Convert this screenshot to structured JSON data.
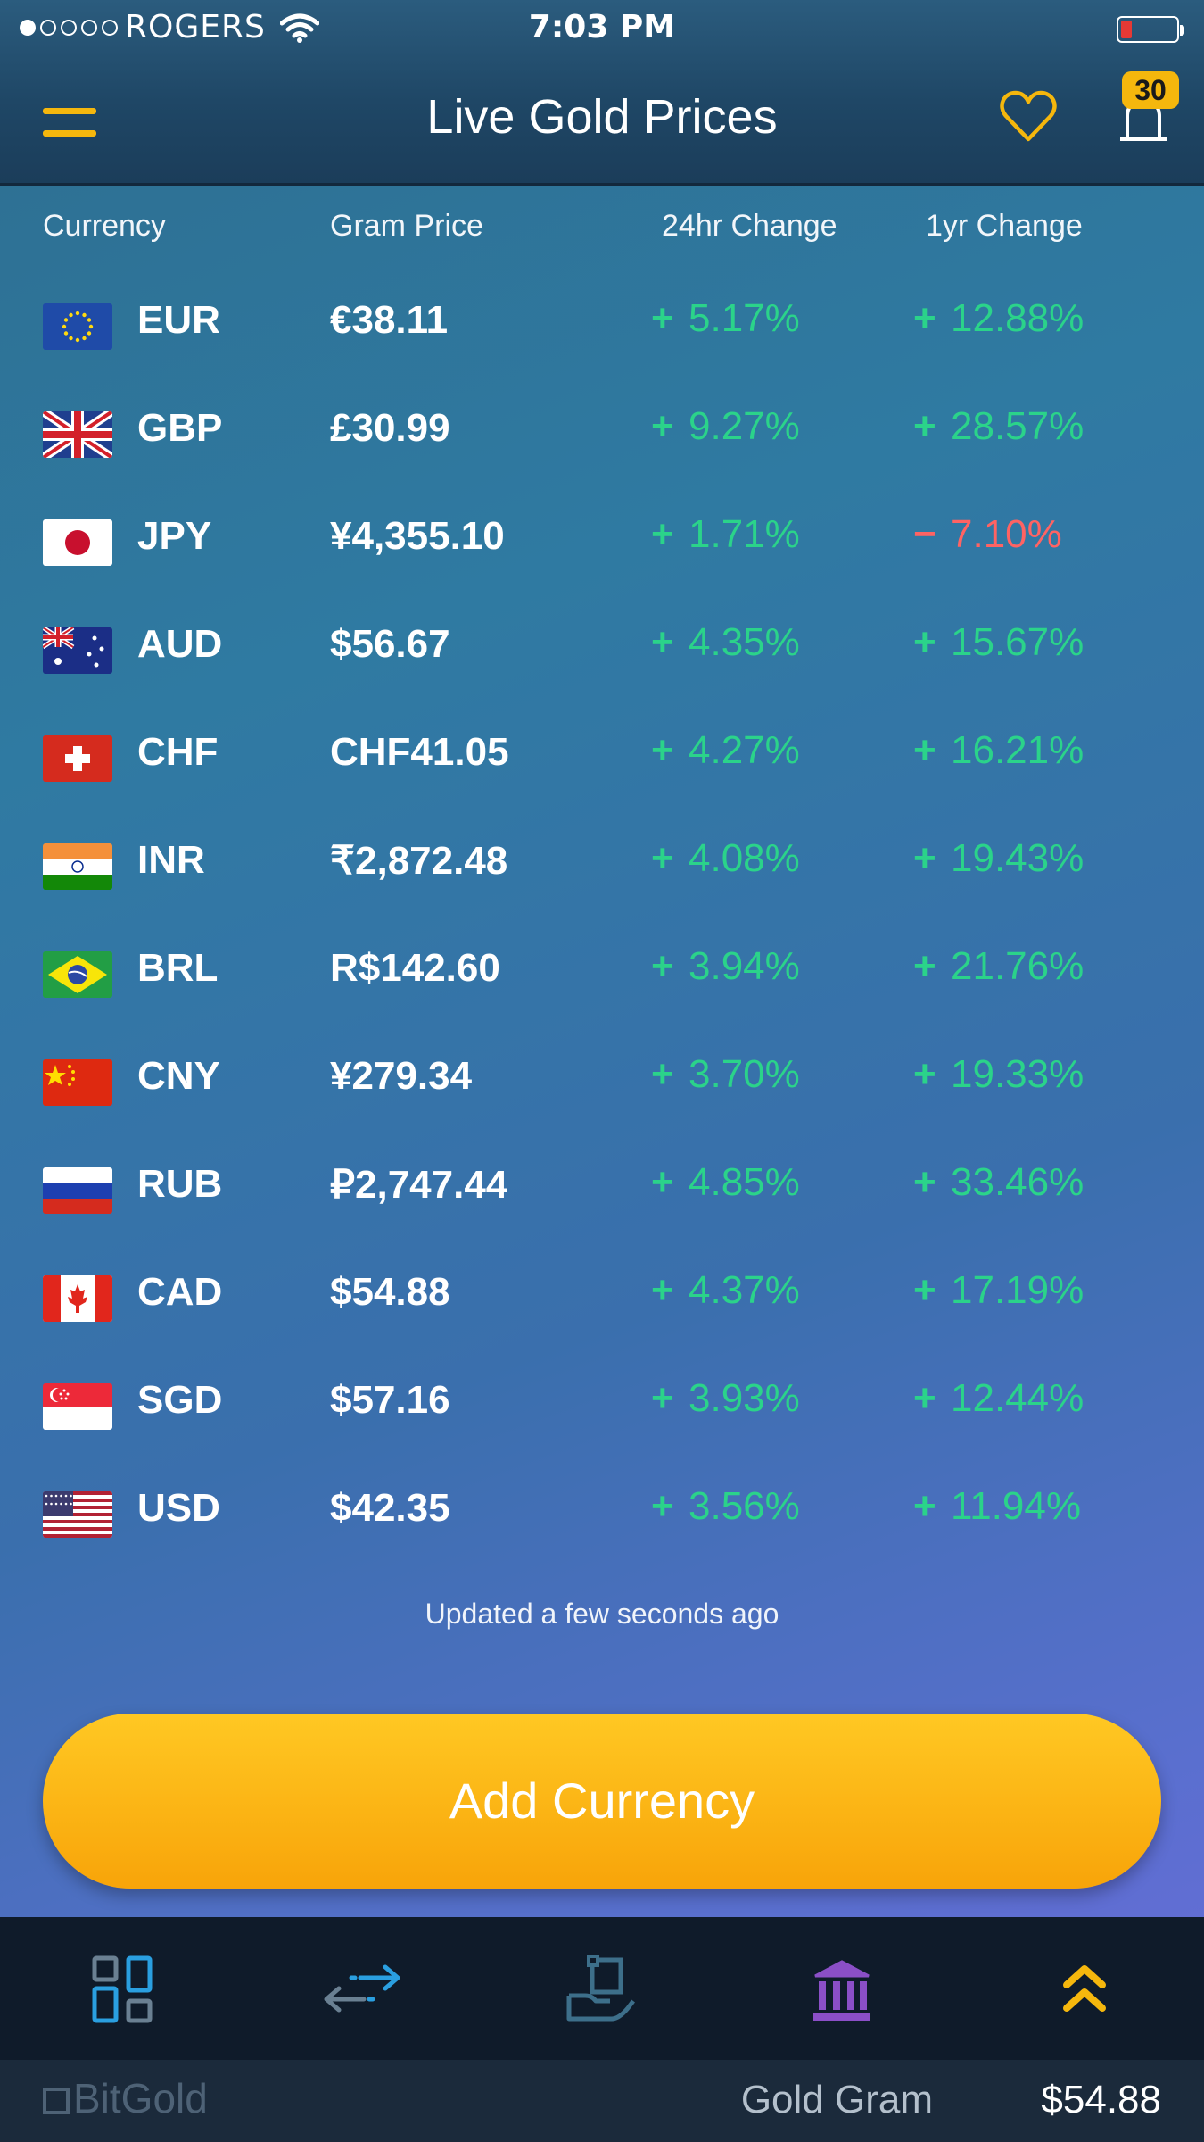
{
  "status_bar": {
    "carrier": "ROGERS",
    "time": "7:03 PM"
  },
  "nav": {
    "title": "Live Gold Prices",
    "notifications_count": "30",
    "menu_icon": "hamburger-icon",
    "favorite_icon": "heart-icon",
    "notification_icon": "bell-icon"
  },
  "table": {
    "headers": {
      "currency": "Currency",
      "gram_price": "Gram Price",
      "change_24h": "24hr Change",
      "change_1y": "1yr Change"
    },
    "rows": [
      {
        "code": "EUR",
        "price": "€38.11",
        "change_24h": "5.17%",
        "dir_24h": "up",
        "change_1y": "12.88%",
        "dir_1y": "up"
      },
      {
        "code": "GBP",
        "price": "£30.99",
        "change_24h": "9.27%",
        "dir_24h": "up",
        "change_1y": "28.57%",
        "dir_1y": "up"
      },
      {
        "code": "JPY",
        "price": "¥4,355.10",
        "change_24h": "1.71%",
        "dir_24h": "up",
        "change_1y": "7.10%",
        "dir_1y": "down"
      },
      {
        "code": "AUD",
        "price": "$56.67",
        "change_24h": "4.35%",
        "dir_24h": "up",
        "change_1y": "15.67%",
        "dir_1y": "up"
      },
      {
        "code": "CHF",
        "price": "CHF41.05",
        "change_24h": "4.27%",
        "dir_24h": "up",
        "change_1y": "16.21%",
        "dir_1y": "up"
      },
      {
        "code": "INR",
        "price": "₹2,872.48",
        "change_24h": "4.08%",
        "dir_24h": "up",
        "change_1y": "19.43%",
        "dir_1y": "up"
      },
      {
        "code": "BRL",
        "price": "R$142.60",
        "change_24h": "3.94%",
        "dir_24h": "up",
        "change_1y": "21.76%",
        "dir_1y": "up"
      },
      {
        "code": "CNY",
        "price": "¥279.34",
        "change_24h": "3.70%",
        "dir_24h": "up",
        "change_1y": "19.33%",
        "dir_1y": "up"
      },
      {
        "code": "RUB",
        "price": "₽2,747.44",
        "change_24h": "4.85%",
        "dir_24h": "up",
        "change_1y": "33.46%",
        "dir_1y": "up"
      },
      {
        "code": "CAD",
        "price": "$54.88",
        "change_24h": "4.37%",
        "dir_24h": "up",
        "change_1y": "17.19%",
        "dir_1y": "up"
      },
      {
        "code": "SGD",
        "price": "$57.16",
        "change_24h": "3.93%",
        "dir_24h": "up",
        "change_1y": "12.44%",
        "dir_1y": "up"
      },
      {
        "code": "USD",
        "price": "$42.35",
        "change_24h": "3.56%",
        "dir_24h": "up",
        "change_1y": "11.94%",
        "dir_1y": "up"
      }
    ]
  },
  "updated_text": "Updated a few seconds ago",
  "add_button_label": "Add Currency",
  "tabbar": {
    "tabs": [
      {
        "icon": "dashboard-icon",
        "color": "#2a9fe0"
      },
      {
        "icon": "transfer-icon",
        "color": "#2a9fe0"
      },
      {
        "icon": "deposit-hand-icon",
        "color": "#3d6f8a"
      },
      {
        "icon": "bank-icon",
        "color": "#8b4fc7"
      },
      {
        "icon": "gold-chevrons-icon",
        "color": "#f5b70d"
      }
    ]
  },
  "footer": {
    "brand": "BitGold",
    "gold_label": "Gold Gram",
    "gold_value": "$54.88"
  },
  "colors": {
    "accent_gold": "#f5b70d",
    "positive": "#2bd38a",
    "negative": "#ff6363"
  }
}
